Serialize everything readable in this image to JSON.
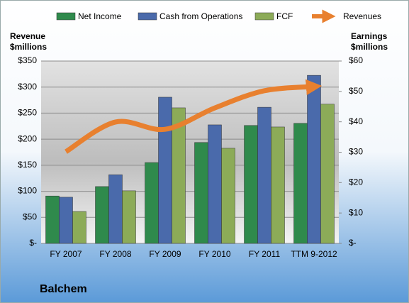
{
  "chart_data": {
    "type": "bar_line",
    "title": "Balchem",
    "y_label": [
      "Revenue",
      "$millions"
    ],
    "y2_label": [
      "Earnings",
      "$millions"
    ],
    "categories": [
      "FY 2007",
      "FY 2008",
      "FY 2009",
      "FY 2010",
      "FY 2011",
      "TTM 9-2012"
    ],
    "series": [
      {
        "name": "Net Income",
        "color": "#2f8a4c",
        "axis": "y2",
        "kind": "bar",
        "values": [
          15.6,
          18.7,
          26.6,
          33.2,
          38.8,
          39.5
        ]
      },
      {
        "name": "Cash from Operations",
        "color": "#4a6aab",
        "axis": "y2",
        "kind": "bar",
        "values": [
          15.2,
          22.6,
          48.1,
          39.0,
          44.8,
          55.3
        ]
      },
      {
        "name": "FCF",
        "color": "#8cab58",
        "axis": "y2",
        "kind": "bar",
        "values": [
          10.5,
          17.3,
          44.6,
          31.3,
          38.3,
          45.8
        ]
      },
      {
        "name": "Revenues",
        "color": "#e8802f",
        "axis": "y",
        "kind": "line",
        "values": [
          176,
          233,
          219,
          260,
          293,
          301
        ]
      }
    ],
    "ylim": [
      0,
      350
    ],
    "yticks": [
      {
        "value": 0,
        "label": "$-"
      },
      {
        "value": 50,
        "label": "$50"
      },
      {
        "value": 100,
        "label": "$100"
      },
      {
        "value": 150,
        "label": "$150"
      },
      {
        "value": 200,
        "label": "$200"
      },
      {
        "value": 250,
        "label": "$250"
      },
      {
        "value": 300,
        "label": "$300"
      },
      {
        "value": 350,
        "label": "$350"
      }
    ],
    "y2lim": [
      0,
      60
    ],
    "y2ticks": [
      {
        "value": 0,
        "label": "$-"
      },
      {
        "value": 10,
        "label": "$10"
      },
      {
        "value": 20,
        "label": "$20"
      },
      {
        "value": 30,
        "label": "$30"
      },
      {
        "value": 40,
        "label": "$40"
      },
      {
        "value": 50,
        "label": "$50"
      },
      {
        "value": 60,
        "label": "$60"
      }
    ],
    "grid": true
  }
}
